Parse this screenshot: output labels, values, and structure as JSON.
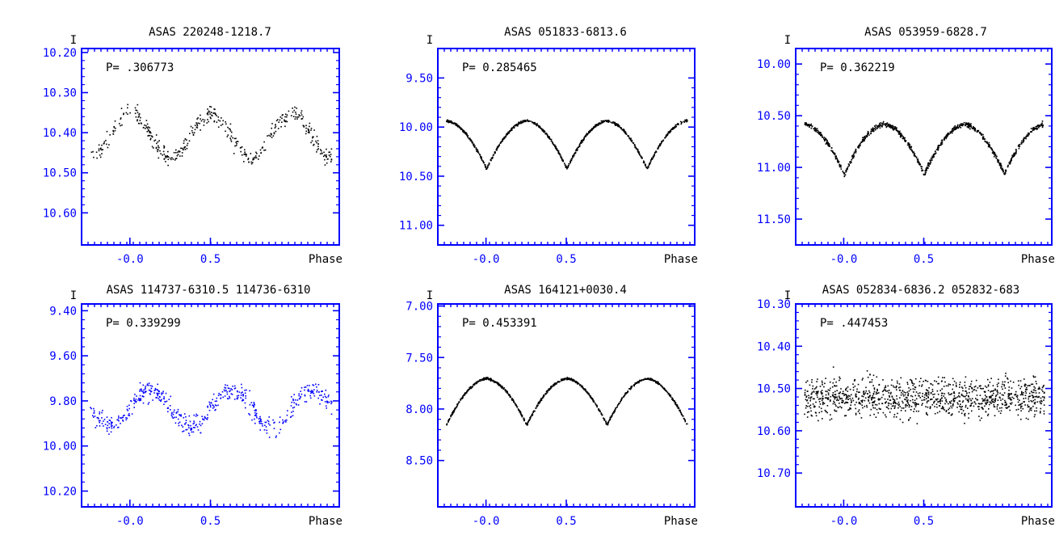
{
  "chart_data": [
    {
      "type": "scatter",
      "title": "ASAS 220248-1218.7",
      "period_label": "P= .306773",
      "ylabel": "I",
      "xlabel": "Phase",
      "x_ticks": [
        "-0.0",
        "0.5"
      ],
      "y_ticks": [
        "10.20",
        "10.30",
        "10.40",
        "10.50",
        "10.60"
      ],
      "xlim": [
        -0.3,
        1.3
      ],
      "ylim": [
        10.68,
        10.19
      ],
      "color": "#000000",
      "curve": {
        "mean": 10.405,
        "amp": 0.055,
        "peak_phases": [
          0.0,
          0.5,
          1.0
        ],
        "min_phase": 0.25,
        "scatter": 0.022,
        "n": 420,
        "mode": "sine",
        "seed": 11
      }
    },
    {
      "type": "scatter",
      "title": "ASAS 051833-6813.6",
      "period_label": "P= 0.285465",
      "ylabel": "I",
      "xlabel": "Phase",
      "x_ticks": [
        "-0.0",
        "0.5"
      ],
      "y_ticks": [
        "9.50",
        "10.00",
        "10.50",
        "11.00"
      ],
      "xlim": [
        -0.3,
        1.3
      ],
      "ylim": [
        11.2,
        9.2
      ],
      "color": "#000000",
      "curve": {
        "top": 9.93,
        "bottom": 10.42,
        "minima": [
          0.0,
          0.5,
          1.0
        ],
        "scatter": 0.012,
        "n": 900,
        "mode": "eclipse",
        "seed": 23
      }
    },
    {
      "type": "scatter",
      "title": "ASAS 053959-6828.7",
      "period_label": "P= 0.362219",
      "ylabel": "I",
      "xlabel": "Phase",
      "x_ticks": [
        "-0.0",
        "0.5"
      ],
      "y_ticks": [
        "10.00",
        "10.50",
        "11.00",
        "11.50"
      ],
      "xlim": [
        -0.3,
        1.3
      ],
      "ylim": [
        11.75,
        9.85
      ],
      "color": "#000000",
      "curve": {
        "top": 10.58,
        "bottom": 11.06,
        "minima": [
          0.0,
          0.5,
          1.0
        ],
        "scatter": 0.022,
        "n": 900,
        "mode": "eclipse",
        "seed": 37
      }
    },
    {
      "type": "scatter",
      "title": "ASAS 114737-6310.5 114736-6310",
      "period_label": "P= 0.339299",
      "ylabel": "I",
      "xlabel": "Phase",
      "x_ticks": [
        "-0.0",
        "0.5"
      ],
      "y_ticks": [
        "9.40",
        "9.60",
        "9.80",
        "10.00",
        "10.20"
      ],
      "xlim": [
        -0.3,
        1.3
      ],
      "ylim": [
        10.27,
        9.37
      ],
      "color": "#0000ff",
      "curve": {
        "mean": 9.83,
        "amp": 0.08,
        "peak_phases": [
          0.125,
          0.625,
          1.125
        ],
        "min_phase": 0.375,
        "scatter": 0.045,
        "n": 520,
        "mode": "sine",
        "seed": 53
      }
    },
    {
      "type": "scatter",
      "title": "ASAS 164121+0030.4",
      "period_label": "P= 0.453391",
      "ylabel": "I",
      "xlabel": "Phase",
      "x_ticks": [
        "-0.0",
        "0.5"
      ],
      "y_ticks": [
        "7.00",
        "7.50",
        "8.00",
        "8.50"
      ],
      "xlim": [
        -0.3,
        1.3
      ],
      "ylim": [
        8.95,
        6.98
      ],
      "color": "#000000",
      "curve": {
        "top": 7.7,
        "bottom": 8.15,
        "minima": [
          -0.25,
          0.25,
          0.75,
          1.25
        ],
        "scatter": 0.01,
        "n": 900,
        "mode": "eclipse",
        "seed": 71
      }
    },
    {
      "type": "scatter",
      "title": "ASAS 052834-6836.2 052832-683",
      "period_label": "P= .447453",
      "ylabel": "I",
      "xlabel": "Phase",
      "x_ticks": [
        "-0.0",
        "0.5"
      ],
      "y_ticks": [
        "10.30",
        "10.40",
        "10.50",
        "10.60",
        "10.70"
      ],
      "xlim": [
        -0.3,
        1.3
      ],
      "ylim": [
        10.78,
        10.3
      ],
      "color": "#000000",
      "curve": {
        "mean": 10.52,
        "amp": 0.0,
        "peak_phases": [
          0.0
        ],
        "min_phase": 0.5,
        "scatter": 0.045,
        "n": 1100,
        "mode": "noise",
        "seed": 97
      }
    }
  ]
}
